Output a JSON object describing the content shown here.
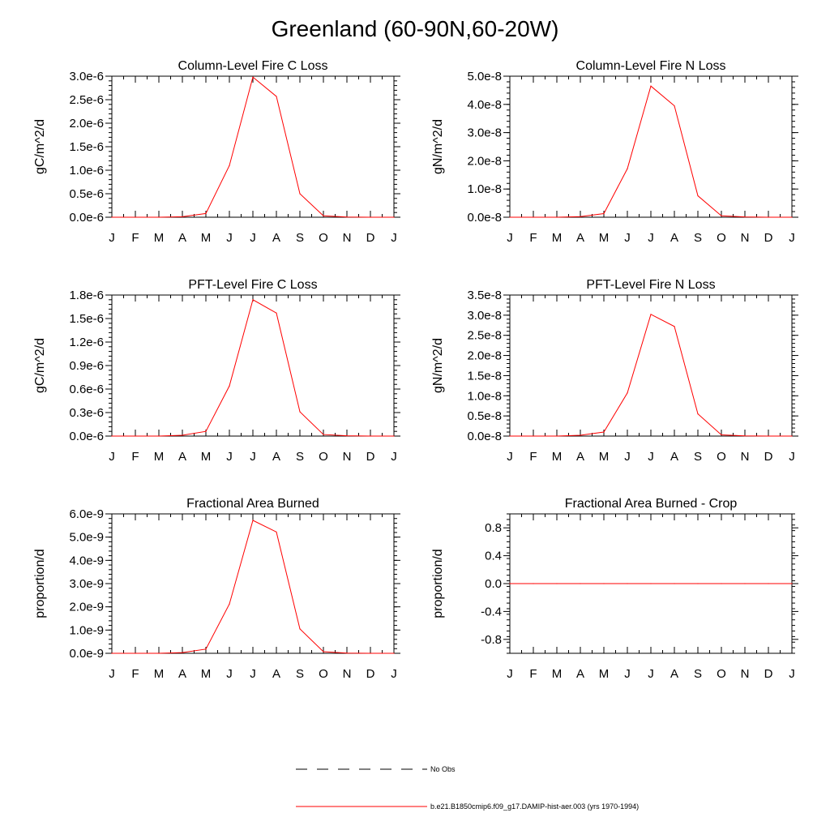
{
  "title": "Greenland (60-90N,60-20W)",
  "months": [
    "J",
    "F",
    "M",
    "A",
    "M",
    "J",
    "J",
    "A",
    "S",
    "O",
    "N",
    "D",
    "J"
  ],
  "chart_data": [
    {
      "type": "line",
      "title": "Column-Level Fire C Loss",
      "ylabel": "gC/m^2/d",
      "ylim": [
        0,
        3e-06
      ],
      "yticks": [
        0,
        5e-07,
        1e-06,
        1.5e-06,
        2e-06,
        2.5e-06,
        3e-06
      ],
      "yticklabels": [
        "0.0e-6",
        "0.5e-6",
        "1.0e-6",
        "1.5e-6",
        "2.0e-6",
        "2.5e-6",
        "3.0e-6"
      ],
      "series": [
        {
          "name": "b.e21.B1850cmip6.f09_g17.DAMIP-hist-aer.003 (yrs 1970-1994)",
          "color": "#ff0000",
          "values": [
            0,
            0,
            0,
            1e-08,
            8e-08,
            1.1e-06,
            2.98e-06,
            2.57e-06,
            5e-07,
            3e-08,
            5e-09,
            0,
            0
          ]
        }
      ]
    },
    {
      "type": "line",
      "title": "Column-Level Fire N Loss",
      "ylabel": "gN/m^2/d",
      "ylim": [
        0,
        5e-08
      ],
      "yticks": [
        0,
        1e-08,
        2e-08,
        3e-08,
        4e-08,
        5e-08
      ],
      "yticklabels": [
        "0.0e-8",
        "1.0e-8",
        "2.0e-8",
        "3.0e-8",
        "4.0e-8",
        "5.0e-8"
      ],
      "series": [
        {
          "name": "b.e21.B1850cmip6.f09_g17.DAMIP-hist-aer.003 (yrs 1970-1994)",
          "color": "#ff0000",
          "values": [
            0,
            0,
            0,
            2e-10,
            1.3e-09,
            1.72e-08,
            4.65e-08,
            3.95e-08,
            7.6e-09,
            5e-10,
            1e-10,
            0,
            0
          ]
        }
      ]
    },
    {
      "type": "line",
      "title": "PFT-Level Fire C Loss",
      "ylabel": "gC/m^2/d",
      "ylim": [
        0,
        1.8e-06
      ],
      "yticks": [
        0,
        3e-07,
        6e-07,
        9e-07,
        1.2e-06,
        1.5e-06,
        1.8e-06
      ],
      "yticklabels": [
        "0.0e-6",
        "0.3e-6",
        "0.6e-6",
        "0.9e-6",
        "1.2e-6",
        "1.5e-6",
        "1.8e-6"
      ],
      "series": [
        {
          "name": "b.e21.B1850cmip6.f09_g17.DAMIP-hist-aer.003 (yrs 1970-1994)",
          "color": "#ff0000",
          "values": [
            0,
            0,
            0,
            1e-08,
            6e-08,
            6.4e-07,
            1.74e-06,
            1.57e-06,
            3.1e-07,
            2e-08,
            4e-09,
            0,
            0
          ]
        }
      ]
    },
    {
      "type": "line",
      "title": "PFT-Level Fire N Loss",
      "ylabel": "gN/m^2/d",
      "ylim": [
        0,
        3.5e-08
      ],
      "yticks": [
        0,
        5e-09,
        1e-08,
        1.5e-08,
        2e-08,
        2.5e-08,
        3e-08,
        3.5e-08
      ],
      "yticklabels": [
        "0.0e-8",
        "0.5e-8",
        "1.0e-8",
        "1.5e-8",
        "2.0e-8",
        "2.5e-8",
        "3.0e-8",
        "3.5e-8"
      ],
      "series": [
        {
          "name": "b.e21.B1850cmip6.f09_g17.DAMIP-hist-aer.003 (yrs 1970-1994)",
          "color": "#ff0000",
          "values": [
            0,
            0,
            0,
            2e-10,
            1e-09,
            1.07e-08,
            3.02e-08,
            2.72e-08,
            5.5e-09,
            3e-10,
            5e-11,
            0,
            0
          ]
        }
      ]
    },
    {
      "type": "line",
      "title": "Fractional Area Burned",
      "ylabel": "proportion/d",
      "ylim": [
        0,
        6e-09
      ],
      "yticks": [
        0,
        1e-09,
        2e-09,
        3e-09,
        4e-09,
        5e-09,
        6e-09
      ],
      "yticklabels": [
        "0.0e-9",
        "1.0e-9",
        "2.0e-9",
        "3.0e-9",
        "4.0e-9",
        "5.0e-9",
        "6.0e-9"
      ],
      "series": [
        {
          "name": "b.e21.B1850cmip6.f09_g17.DAMIP-hist-aer.003 (yrs 1970-1994)",
          "color": "#ff0000",
          "values": [
            0,
            0,
            0,
            3e-11,
            1.8e-10,
            2.12e-09,
            5.72e-09,
            5.22e-09,
            1.05e-09,
            7e-11,
            1e-11,
            0,
            0
          ]
        }
      ]
    },
    {
      "type": "line",
      "title": "Fractional Area Burned - Crop",
      "ylabel": "proportion/d",
      "ylim": [
        -1.0,
        1.0
      ],
      "yticks": [
        -0.8,
        -0.4,
        0.0,
        0.4,
        0.8
      ],
      "yticklabels": [
        "-0.8",
        "-0.4",
        "0.0",
        "0.4",
        "0.8"
      ],
      "series": [
        {
          "name": "b.e21.B1850cmip6.f09_g17.DAMIP-hist-aer.003 (yrs 1970-1994)",
          "color": "#ff0000",
          "values": [
            0,
            0,
            0,
            0,
            0,
            0,
            0,
            0,
            0,
            0,
            0,
            0,
            0
          ]
        }
      ]
    }
  ],
  "legend": [
    {
      "label": "No Obs",
      "style": "dashed",
      "color": "#000000"
    },
    {
      "label": "b.e21.B1850cmip6.f09_g17.DAMIP-hist-aer.003 (yrs 1970-1994)",
      "style": "solid",
      "color": "#ff0000"
    }
  ]
}
